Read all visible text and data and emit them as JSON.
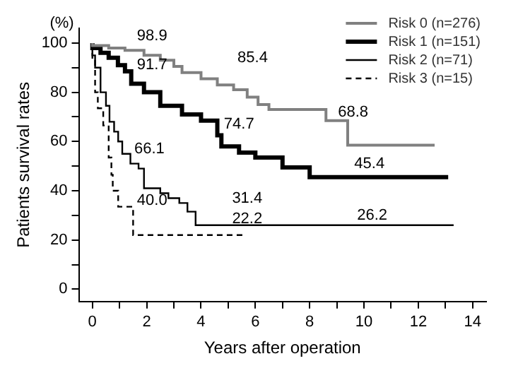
{
  "chart_data": {
    "type": "step",
    "xlabel": "Years after operation",
    "ylabel": "Patients survival rates",
    "xlim": [
      -0.5,
      14.5
    ],
    "ylim": [
      -5,
      106
    ],
    "xticks": [
      0,
      {
        "value": 1,
        "label": null
      },
      2,
      {
        "value": 3,
        "label": null
      },
      4,
      {
        "value": 5,
        "label": null
      },
      6,
      {
        "value": 7,
        "label": null
      },
      8,
      {
        "value": 9,
        "label": null
      },
      10,
      {
        "value": 11,
        "label": null
      },
      12,
      {
        "value": 13,
        "label": null
      },
      14
    ],
    "yticks": [
      0,
      {
        "value": 10,
        "label": null
      },
      20,
      {
        "value": 30,
        "label": null
      },
      40,
      {
        "value": 50,
        "label": null
      },
      60,
      {
        "value": 70,
        "label": null
      },
      80,
      {
        "value": 90,
        "label": null
      },
      100
    ],
    "grid": false,
    "legend": "top right",
    "marker": "none",
    "series": [
      {
        "name": "Risk 0 (n=276)",
        "color": "#808080",
        "line_style": "solid",
        "x": [
          0,
          0.6,
          1.2,
          1.9,
          2.5,
          3,
          3.3,
          4,
          4.6,
          5.2,
          5.7,
          6.1,
          6.5,
          8.6,
          9.4,
          11,
          12.6
        ],
        "values": [
          100,
          99,
          98,
          97,
          95,
          93,
          90.5,
          88,
          85.5,
          83,
          81,
          78,
          75,
          73,
          68.5,
          58.5,
          58.5
        ]
      },
      {
        "name": "Risk 1 (n=151)",
        "color": "#000000",
        "line_style": "solid",
        "x": [
          0,
          0.3,
          0.6,
          0.94,
          1.2,
          1.43,
          1.9,
          2.5,
          3.3,
          4,
          4.6,
          4.75,
          5.4,
          6,
          7,
          8,
          8.3,
          13.1
        ],
        "values": [
          100,
          98,
          96,
          94,
          91,
          88.5,
          83.5,
          80,
          74.5,
          71,
          68.5,
          62.5,
          58,
          55.5,
          53.5,
          49.5,
          45.5,
          45.5
        ]
      },
      {
        "name": "Risk 2 (n=71)",
        "color": "#000000",
        "line_style": "solid",
        "x": [
          0,
          0.1,
          0.3,
          0.5,
          0.63,
          0.8,
          0.95,
          1.1,
          1.4,
          1.7,
          1.9,
          2.5,
          2.8,
          3.2,
          3.5,
          3.8,
          8.4,
          13.3
        ],
        "values": [
          100,
          95,
          90,
          80,
          74.5,
          68,
          64,
          60,
          55,
          51,
          49,
          41,
          39,
          37,
          35,
          31.5,
          26,
          26
        ]
      },
      {
        "name": "Risk 3 (n=15)",
        "color": "#000000",
        "line_style": "dashed",
        "x": [
          0,
          0.1,
          0.2,
          0.4,
          0.6,
          0.7,
          0.75,
          0.95,
          1.5,
          2.35,
          5.55
        ],
        "values": [
          100,
          93.5,
          80,
          73.5,
          66.5,
          53.5,
          46.5,
          40,
          33.5,
          22,
          22
        ]
      }
    ],
    "annotations": [
      "(%)",
      "98.9",
      "85.4",
      "68.8",
      "91.7",
      "74.7",
      "45.4",
      "66.1",
      "31.4",
      "26.2",
      "40.0",
      "22.2"
    ]
  }
}
